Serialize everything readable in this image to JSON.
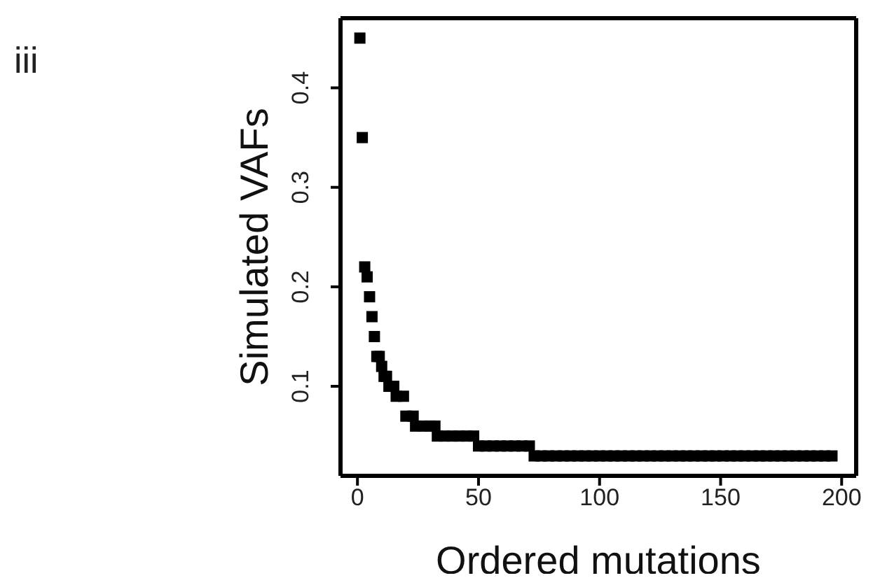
{
  "chart_data": {
    "type": "scatter",
    "xlabel": "Ordered mutations",
    "ylabel": "Simulated VAFs",
    "annotations": [
      "iii"
    ],
    "marker": "square",
    "grid": false,
    "xlim": [
      -7,
      206
    ],
    "xticks": [
      0,
      50,
      100,
      150,
      200
    ],
    "ylim": [
      0.01,
      0.47
    ],
    "yticks": [
      0.1,
      0.2,
      0.3,
      0.4
    ],
    "series": [
      {
        "color": "#000000",
        "x": [
          1,
          2,
          3,
          4,
          5,
          6,
          7,
          8,
          9,
          10,
          11,
          12,
          13,
          15,
          16,
          19,
          20,
          23,
          24,
          27,
          30,
          32,
          33,
          36,
          39,
          42,
          45,
          48,
          50,
          53,
          56,
          59,
          62,
          65,
          68,
          71,
          73,
          76,
          79,
          82,
          85,
          88,
          91,
          94,
          97,
          100,
          103,
          106,
          109,
          112,
          115,
          118,
          121,
          124,
          127,
          130,
          133,
          136,
          139,
          142,
          145,
          148,
          151,
          154,
          157,
          160,
          163,
          166,
          169,
          172,
          175,
          178,
          181,
          184,
          187,
          190,
          193,
          196
        ],
        "values": [
          0.45,
          0.35,
          0.22,
          0.21,
          0.19,
          0.17,
          0.15,
          0.13,
          0.13,
          0.12,
          0.11,
          0.11,
          0.1,
          0.1,
          0.09,
          0.09,
          0.07,
          0.07,
          0.06,
          0.06,
          0.06,
          0.06,
          0.05,
          0.05,
          0.05,
          0.05,
          0.05,
          0.05,
          0.04,
          0.04,
          0.04,
          0.04,
          0.04,
          0.04,
          0.04,
          0.04,
          0.03,
          0.03,
          0.03,
          0.03,
          0.03,
          0.03,
          0.03,
          0.03,
          0.03,
          0.03,
          0.03,
          0.03,
          0.03,
          0.03,
          0.03,
          0.03,
          0.03,
          0.03,
          0.03,
          0.03,
          0.03,
          0.03,
          0.03,
          0.03,
          0.03,
          0.03,
          0.03,
          0.03,
          0.03,
          0.03,
          0.03,
          0.03,
          0.03,
          0.03,
          0.03,
          0.03,
          0.03,
          0.03,
          0.03,
          0.03,
          0.03,
          0.03
        ]
      }
    ]
  }
}
